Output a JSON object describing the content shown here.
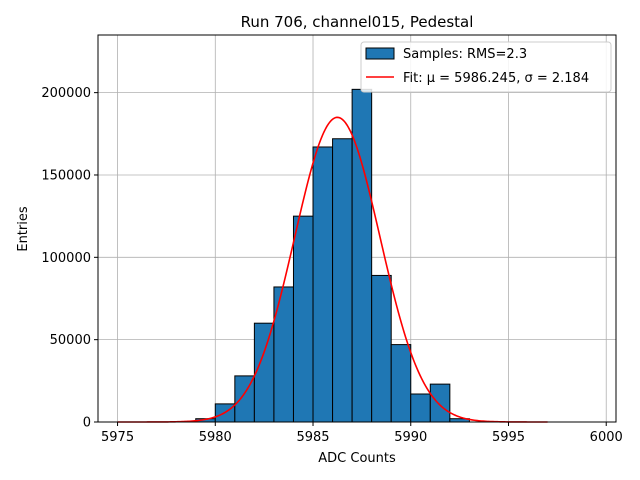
{
  "chart_data": {
    "type": "bar",
    "title": "Run 706, channel015, Pedestal",
    "xlabel": "ADC Counts",
    "ylabel": "Entries",
    "xlim": [
      5974,
      6000.5
    ],
    "ylim": [
      0,
      235000
    ],
    "xticks": [
      5975,
      5980,
      5985,
      5990,
      5995,
      6000
    ],
    "yticks": [
      0,
      50000,
      100000,
      150000,
      200000
    ],
    "grid": true,
    "legend_position": "top-right",
    "bins": {
      "edges": [
        5979,
        5980,
        5981,
        5982,
        5983,
        5984,
        5985,
        5986,
        5987,
        5988,
        5989,
        5990,
        5991,
        5992,
        5993
      ],
      "values": [
        2000,
        11000,
        28000,
        60000,
        82000,
        125000,
        167000,
        172000,
        202000,
        89000,
        47000,
        17000,
        23000,
        2000
      ]
    },
    "fit": {
      "mu": 5986.245,
      "sigma": 2.184,
      "amplitude": 185000,
      "x_range": [
        5975,
        5997
      ]
    },
    "series": [
      {
        "name": "Samples: RMS=2.3",
        "kind": "histogram",
        "color": "#1f77b4"
      },
      {
        "name": "Fit: μ = 5986.245, σ = 2.184",
        "kind": "line",
        "color": "#ff0000"
      }
    ]
  }
}
